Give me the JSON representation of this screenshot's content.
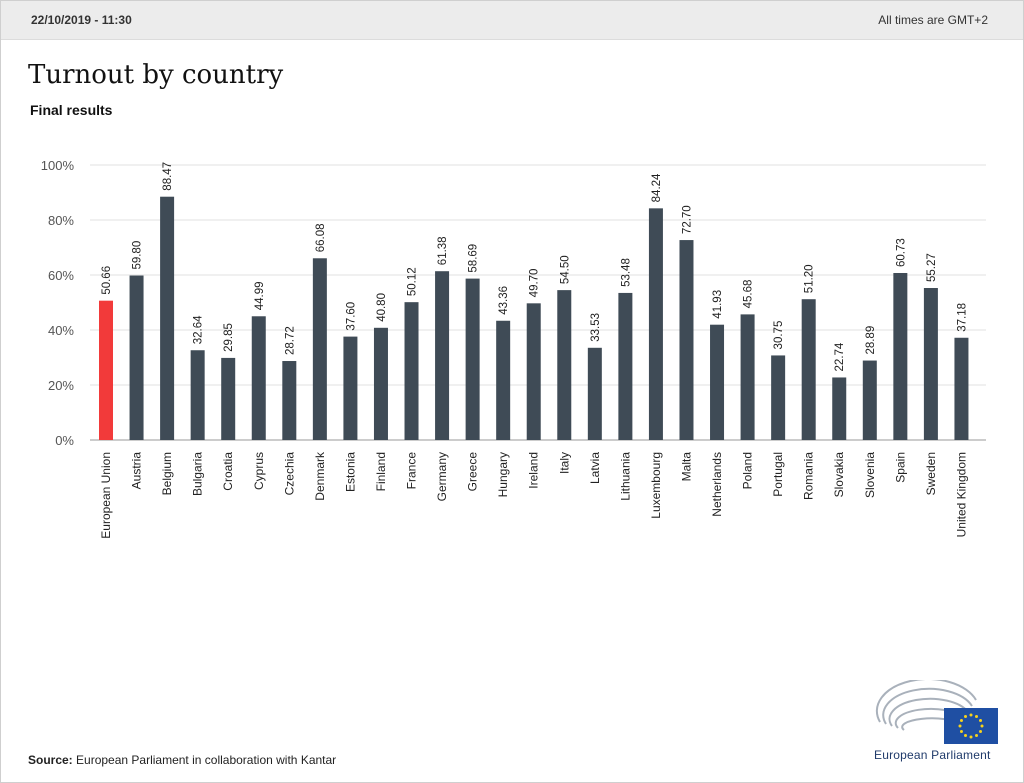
{
  "header": {
    "date": "22/10/2019 - 11:30",
    "timezone_note": "All times are GMT+2"
  },
  "title": "Turnout by country",
  "subtitle": "Final results",
  "source": {
    "label": "Source:",
    "text": " European Parliament in collaboration with Kantar"
  },
  "logo": {
    "text": "European Parliament"
  },
  "colors": {
    "bar": "#3f4b56",
    "highlight": "#f23a3a",
    "grid": "#e0e0e0",
    "axis": "#999999"
  },
  "chart_data": {
    "type": "bar",
    "title": "Turnout by country",
    "subtitle": "Final results",
    "xlabel": "",
    "ylabel": "",
    "ylim": [
      0,
      100
    ],
    "yticks": [
      0,
      20,
      40,
      60,
      80,
      100
    ],
    "ytick_labels": [
      "0%",
      "20%",
      "40%",
      "60%",
      "80%",
      "100%"
    ],
    "categories": [
      "European Union",
      "Austria",
      "Belgium",
      "Bulgaria",
      "Croatia",
      "Cyprus",
      "Czechia",
      "Denmark",
      "Estonia",
      "Finland",
      "France",
      "Germany",
      "Greece",
      "Hungary",
      "Ireland",
      "Italy",
      "Latvia",
      "Lithuania",
      "Luxembourg",
      "Malta",
      "Netherlands",
      "Poland",
      "Portugal",
      "Romania",
      "Slovakia",
      "Slovenia",
      "Spain",
      "Sweden",
      "United Kingdom"
    ],
    "values": [
      50.66,
      59.8,
      88.47,
      32.64,
      29.85,
      44.99,
      28.72,
      66.08,
      37.6,
      40.8,
      50.12,
      61.38,
      58.69,
      43.36,
      49.7,
      54.5,
      33.53,
      53.48,
      84.24,
      72.7,
      41.93,
      45.68,
      30.75,
      51.2,
      22.74,
      28.89,
      60.73,
      55.27,
      37.18
    ],
    "value_labels": [
      "50.66",
      "59.80",
      "88.47",
      "32.64",
      "29.85",
      "44.99",
      "28.72",
      "66.08",
      "37.60",
      "40.80",
      "50.12",
      "61.38",
      "58.69",
      "43.36",
      "49.70",
      "54.50",
      "33.53",
      "53.48",
      "84.24",
      "72.70",
      "41.93",
      "45.68",
      "30.75",
      "51.20",
      "22.74",
      "28.89",
      "60.73",
      "55.27",
      "37.18"
    ],
    "highlight_category": "European Union",
    "grid": true
  }
}
